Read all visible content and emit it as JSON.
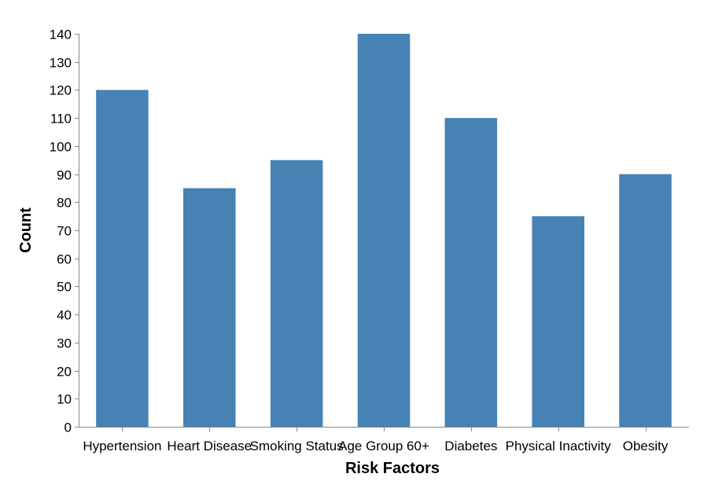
{
  "chart_data": {
    "type": "bar",
    "categories": [
      "Hypertension",
      "Heart Disease",
      "Smoking Status",
      "Age Group 60+",
      "Diabetes",
      "Physical Inactivity",
      "Obesity"
    ],
    "values": [
      120,
      85,
      95,
      140,
      110,
      75,
      90
    ],
    "title": "",
    "xlabel": "Risk Factors",
    "ylabel": "Count",
    "ylim": [
      0,
      140
    ],
    "yticks": [
      0,
      10,
      20,
      30,
      40,
      50,
      60,
      70,
      80,
      90,
      100,
      110,
      120,
      130,
      140
    ],
    "grid": false,
    "legend": "none",
    "bar_color": "#4682b4",
    "axis_color": "#888888"
  }
}
